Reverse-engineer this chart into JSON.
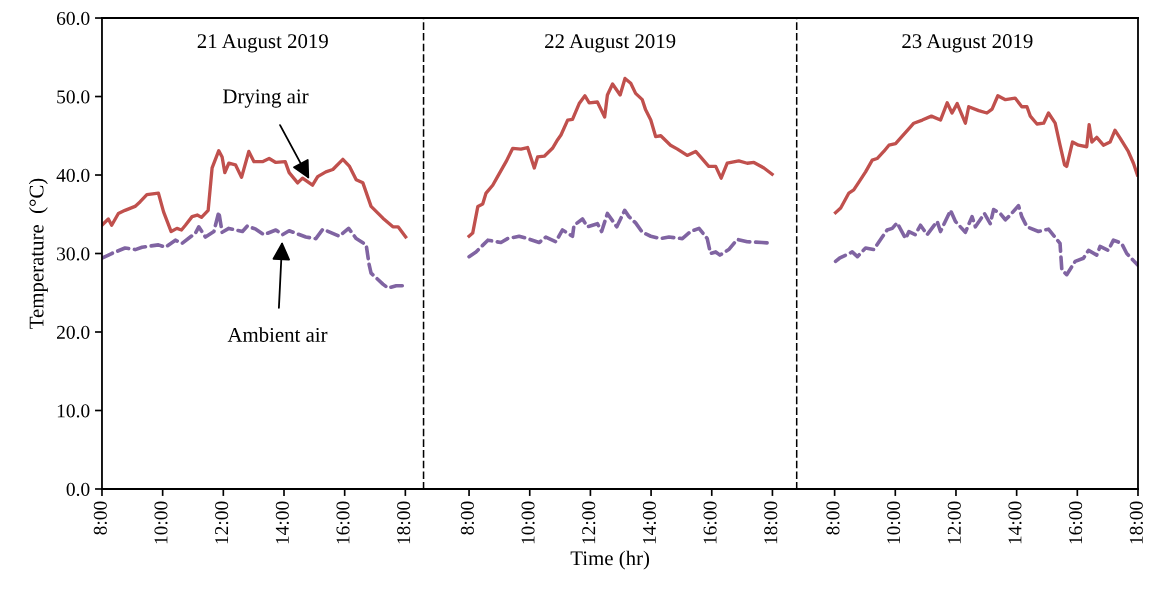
{
  "chart_data": [
    {
      "type": "line",
      "title": "21 August 2019",
      "ylabel": "Temperature  (°C)",
      "xlim": [
        8,
        18.6
      ],
      "ylim": [
        0,
        60
      ],
      "xticks": [
        {
          "value": 8,
          "label": "8:00"
        },
        {
          "value": 10,
          "label": "10:00"
        },
        {
          "value": 12,
          "label": "12:00"
        },
        {
          "value": 14,
          "label": "14:00"
        },
        {
          "value": 16,
          "label": "16:00"
        },
        {
          "value": 18,
          "label": "18:00"
        }
      ],
      "yticks": [
        {
          "value": 0,
          "label": "0.0"
        },
        {
          "value": 10,
          "label": "10.0"
        },
        {
          "value": 20,
          "label": "20.0"
        },
        {
          "value": 30,
          "label": "30.0"
        },
        {
          "value": 40,
          "label": "40.0"
        },
        {
          "value": 50,
          "label": "50.0"
        },
        {
          "value": 60,
          "label": "60.0"
        }
      ],
      "grid": false,
      "annotations": [
        {
          "text": "Drying air",
          "x": 14.94,
          "y": 38.7
        },
        {
          "text": "Ambient air",
          "x": 13.95,
          "y": 32.4
        }
      ],
      "series": [
        {
          "color": "#c0504d",
          "line_style": "solid",
          "x": [
            8.0,
            8.21,
            8.32,
            8.54,
            8.76,
            9.09,
            9.26,
            9.48,
            9.86,
            10.03,
            10.28,
            10.47,
            10.62,
            10.75,
            10.97,
            11.14,
            11.28,
            11.5,
            11.63,
            11.85,
            11.96,
            12.05,
            12.18,
            12.4,
            12.6,
            12.84,
            13.01,
            13.29,
            13.51,
            13.73,
            14.04,
            14.17,
            14.45,
            14.61,
            14.94,
            15.11,
            15.38,
            15.61,
            15.94,
            16.16,
            16.38,
            16.6,
            16.87,
            17.26,
            17.59,
            17.76,
            18.01
          ],
          "values": [
            33.6,
            34.4,
            33.6,
            35.1,
            35.5,
            36.0,
            36.6,
            37.5,
            37.7,
            35.3,
            32.8,
            33.2,
            33.0,
            33.6,
            34.7,
            34.9,
            34.6,
            35.5,
            40.9,
            43.1,
            42.3,
            40.3,
            41.5,
            41.3,
            39.7,
            43.0,
            41.7,
            41.7,
            42.1,
            41.6,
            41.7,
            40.3,
            39.0,
            39.6,
            38.7,
            39.8,
            40.4,
            40.7,
            42.0,
            41.1,
            39.4,
            39.0,
            36.0,
            34.5,
            33.4,
            33.4,
            32.1
          ]
        },
        {
          "color": "#8064a2",
          "line_style": "dashed",
          "x": [
            8.0,
            8.32,
            8.76,
            9.1,
            9.32,
            9.86,
            10.09,
            10.42,
            10.64,
            11.08,
            11.19,
            11.41,
            11.69,
            11.85,
            11.96,
            12.18,
            12.63,
            12.79,
            13.07,
            13.34,
            13.73,
            13.95,
            14.17,
            14.72,
            15.05,
            15.28,
            15.82,
            16.13,
            16.38,
            16.71,
            16.8,
            16.87,
            17.26,
            17.43,
            17.7,
            18.01
          ],
          "values": [
            29.4,
            30.0,
            30.7,
            30.5,
            30.8,
            31.1,
            30.8,
            31.7,
            31.3,
            32.6,
            33.4,
            32.1,
            32.8,
            35.3,
            32.7,
            33.2,
            32.8,
            33.5,
            33.1,
            32.4,
            33.0,
            32.4,
            32.9,
            32.1,
            31.9,
            33.1,
            32.2,
            33.2,
            31.9,
            31.1,
            28.7,
            27.5,
            26.1,
            25.6,
            25.9,
            25.9
          ]
        }
      ]
    },
    {
      "type": "line",
      "title": "22 August 2019",
      "xlabel": "Time (hr)",
      "xlim": [
        6.5,
        18.8
      ],
      "ylim": [
        0,
        60
      ],
      "tick_labels": "x",
      "xticks": [
        {
          "value": 8,
          "label": "8:00"
        },
        {
          "value": 10,
          "label": "10:00"
        },
        {
          "value": 12,
          "label": "12:00"
        },
        {
          "value": 14,
          "label": "14:00"
        },
        {
          "value": 16,
          "label": "16:00"
        },
        {
          "value": 18,
          "label": "18:00"
        }
      ],
      "grid": false,
      "series": [
        {
          "color": "#c0504d",
          "line_style": "solid",
          "x": [
            8.0,
            8.12,
            8.29,
            8.45,
            8.56,
            8.78,
            8.94,
            9.22,
            9.44,
            9.71,
            9.93,
            10.15,
            10.26,
            10.48,
            10.75,
            10.92,
            11.03,
            11.25,
            11.41,
            11.63,
            11.82,
            11.96,
            12.23,
            12.47,
            12.56,
            12.73,
            12.98,
            13.14,
            13.33,
            13.49,
            13.71,
            13.82,
            13.99,
            14.15,
            14.32,
            14.64,
            14.87,
            15.19,
            15.47,
            15.63,
            15.9,
            16.13,
            16.31,
            16.51,
            16.89,
            17.17,
            17.39,
            17.72,
            17.99
          ],
          "values": [
            32.2,
            32.6,
            36.0,
            36.3,
            37.7,
            38.7,
            39.8,
            41.7,
            43.4,
            43.3,
            43.5,
            40.9,
            42.3,
            42.4,
            43.4,
            44.5,
            45.1,
            47.0,
            47.1,
            49.1,
            50.1,
            49.2,
            49.3,
            47.4,
            50.2,
            51.6,
            50.2,
            52.3,
            51.7,
            50.4,
            49.6,
            48.3,
            47.0,
            44.9,
            45.0,
            43.8,
            43.3,
            42.5,
            43.0,
            42.3,
            41.1,
            41.1,
            39.6,
            41.5,
            41.8,
            41.5,
            41.6,
            40.9,
            40.1
          ]
        },
        {
          "color": "#8064a2",
          "line_style": "dashed",
          "x": [
            8.0,
            8.23,
            8.62,
            9.05,
            9.27,
            9.65,
            9.93,
            10.31,
            10.53,
            10.86,
            11.08,
            11.41,
            11.46,
            11.74,
            11.9,
            12.23,
            12.37,
            12.56,
            12.87,
            13.13,
            13.27,
            13.49,
            13.71,
            13.99,
            14.32,
            14.59,
            15.03,
            15.3,
            15.58,
            15.85,
            15.96,
            16.13,
            16.27,
            16.56,
            16.84,
            17.17,
            17.66,
            17.99
          ],
          "values": [
            29.6,
            30.2,
            31.7,
            31.4,
            31.9,
            32.2,
            31.9,
            31.4,
            32.1,
            31.5,
            33.0,
            32.2,
            33.6,
            34.4,
            33.4,
            33.8,
            32.8,
            35.1,
            33.4,
            35.5,
            34.7,
            33.9,
            32.7,
            32.2,
            31.9,
            32.1,
            31.9,
            32.8,
            33.2,
            31.9,
            30.0,
            30.2,
            29.8,
            30.5,
            31.8,
            31.5,
            31.4,
            31.3
          ]
        }
      ]
    },
    {
      "type": "line",
      "title": "23 August 2019",
      "xlim": [
        6.75,
        18
      ],
      "ylim": [
        0,
        60
      ],
      "tick_labels": "x",
      "xticks": [
        {
          "value": 8,
          "label": "8:00"
        },
        {
          "value": 10,
          "label": "10:00"
        },
        {
          "value": 12,
          "label": "12:00"
        },
        {
          "value": 14,
          "label": "14:00"
        },
        {
          "value": 16,
          "label": "16:00"
        },
        {
          "value": 18,
          "label": "18:00"
        }
      ],
      "grid": false,
      "series": [
        {
          "color": "#c0504d",
          "line_style": "solid",
          "x": [
            8.03,
            8.2,
            8.47,
            8.63,
            8.8,
            9.02,
            9.24,
            9.4,
            9.62,
            9.79,
            10.01,
            10.17,
            10.45,
            10.61,
            10.89,
            11.19,
            11.49,
            11.71,
            11.87,
            12.04,
            12.31,
            12.42,
            12.75,
            13.02,
            13.19,
            13.38,
            13.63,
            13.95,
            14.17,
            14.34,
            14.45,
            14.67,
            14.89,
            15.05,
            15.27,
            15.43,
            15.58,
            15.65,
            15.84,
            16.04,
            16.31,
            16.39,
            16.48,
            16.64,
            16.86,
            17.08,
            17.24,
            17.41,
            17.68,
            17.85,
            17.98
          ],
          "values": [
            35.2,
            35.8,
            37.7,
            38.1,
            39.1,
            40.4,
            41.9,
            42.1,
            43.0,
            43.8,
            44.0,
            44.7,
            45.9,
            46.6,
            47.0,
            47.5,
            47.0,
            49.2,
            47.9,
            49.1,
            46.6,
            48.7,
            48.2,
            47.9,
            48.4,
            50.1,
            49.6,
            49.8,
            48.7,
            48.7,
            47.5,
            46.5,
            46.6,
            47.9,
            46.6,
            43.8,
            41.3,
            41.1,
            44.2,
            43.8,
            43.6,
            46.4,
            44.2,
            44.8,
            43.8,
            44.2,
            45.7,
            44.7,
            43.0,
            41.5,
            40.0
          ]
        },
        {
          "color": "#8064a2",
          "line_style": "dashed",
          "x": [
            8.03,
            8.16,
            8.58,
            8.75,
            9.02,
            9.29,
            9.57,
            9.73,
            9.9,
            10.06,
            10.34,
            10.45,
            10.66,
            10.83,
            11.05,
            11.38,
            11.49,
            11.82,
            11.98,
            12.31,
            12.53,
            12.64,
            12.94,
            13.13,
            13.24,
            13.46,
            13.63,
            13.79,
            14.06,
            14.17,
            14.34,
            14.72,
            15.05,
            15.43,
            15.49,
            15.65,
            15.93,
            16.2,
            16.37,
            16.64,
            16.75,
            17.02,
            17.19,
            17.46,
            17.63,
            18.0
          ],
          "values": [
            29.0,
            29.4,
            30.2,
            29.6,
            30.7,
            30.5,
            32.1,
            33.0,
            33.2,
            33.9,
            31.9,
            32.8,
            32.4,
            33.6,
            32.4,
            34.1,
            32.8,
            35.5,
            34.1,
            32.7,
            34.7,
            33.4,
            35.1,
            33.8,
            35.6,
            35.1,
            34.3,
            34.9,
            36.1,
            34.7,
            33.4,
            32.8,
            33.1,
            31.3,
            27.9,
            27.3,
            29.0,
            29.4,
            30.4,
            29.8,
            30.9,
            30.4,
            31.7,
            31.3,
            30.0,
            28.5
          ]
        }
      ]
    }
  ]
}
